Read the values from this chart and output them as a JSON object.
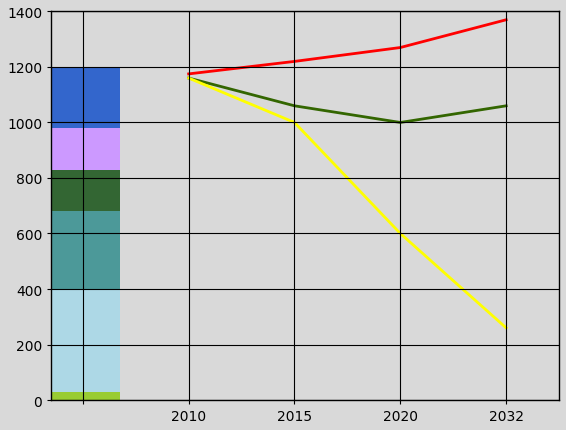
{
  "bar_segments": [
    {
      "value": 30,
      "color": "#99cc33"
    },
    {
      "value": 370,
      "color": "#add8e6"
    },
    {
      "value": 280,
      "color": "#4c9999"
    },
    {
      "value": 150,
      "color": "#336633"
    },
    {
      "value": 150,
      "color": "#cc99ff"
    },
    {
      "value": 220,
      "color": "#3366cc"
    }
  ],
  "line_red": {
    "x": [
      1,
      2,
      3,
      4
    ],
    "y": [
      1175,
      1220,
      1270,
      1370
    ],
    "color": "#ff0000",
    "linewidth": 2.0
  },
  "line_green": {
    "x": [
      1,
      2,
      3,
      4
    ],
    "y": [
      1160,
      1060,
      1000,
      1060
    ],
    "color": "#336600",
    "linewidth": 2.0
  },
  "line_yellow": {
    "x": [
      1,
      2,
      3,
      4
    ],
    "y": [
      1160,
      1000,
      600,
      260
    ],
    "color": "#ffff00",
    "linewidth": 2.0
  },
  "xtick_positions": [
    0,
    1,
    2,
    3,
    4
  ],
  "xtick_labels": [
    "",
    "2010",
    "2015",
    "2020",
    "2032"
  ],
  "yticks": [
    0,
    200,
    400,
    600,
    800,
    1000,
    1200,
    1400
  ],
  "xlim": [
    -0.3,
    4.5
  ],
  "ylim": [
    0,
    1400
  ],
  "bar_x": 0,
  "bar_width": 0.7,
  "bg_color": "#d9d9d9",
  "grid_color": "#000000"
}
